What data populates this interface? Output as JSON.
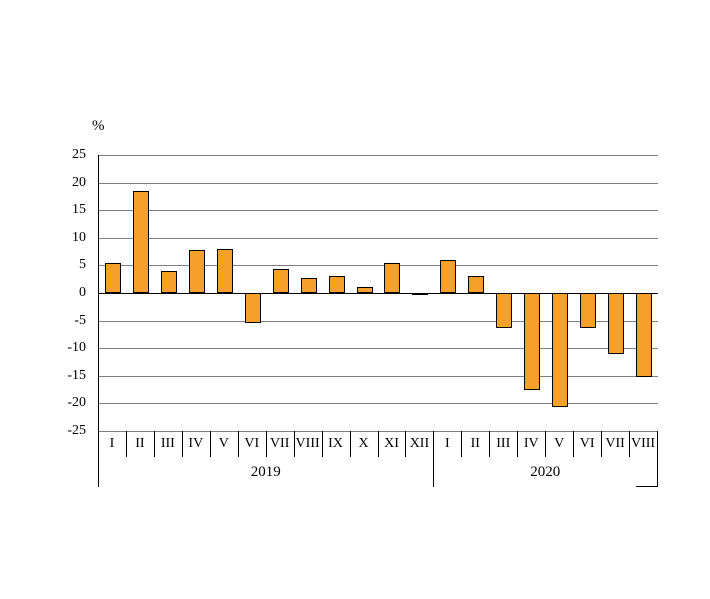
{
  "chart_data": {
    "type": "bar",
    "title": "",
    "y_unit": "%",
    "ylim": [
      -25,
      25
    ],
    "ytick_step": 5,
    "grid": true,
    "legend_position": "none",
    "bar_color": "#F5A028",
    "bar_border_color": "#000000",
    "grid_color": "#7f7f7f",
    "groups": [
      {
        "label": "2019",
        "categories": [
          "I",
          "II",
          "III",
          "IV",
          "V",
          "VI",
          "VII",
          "VIII",
          "IX",
          "X",
          "XI",
          "XII"
        ],
        "values": [
          5.5,
          18.5,
          4.0,
          7.8,
          8.0,
          -5.5,
          4.3,
          2.7,
          3.0,
          1.0,
          5.5,
          -0.4
        ]
      },
      {
        "label": "2020",
        "categories": [
          "I",
          "II",
          "III",
          "IV",
          "V",
          "VI",
          "VII",
          "VIII"
        ],
        "values": [
          6.0,
          3.0,
          -6.3,
          -17.6,
          -20.7,
          -6.3,
          -11.0,
          -15.3
        ]
      }
    ]
  }
}
